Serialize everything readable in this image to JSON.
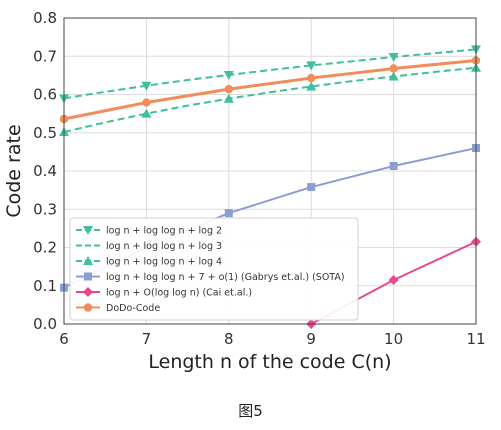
{
  "figure_caption": "图5",
  "chart_data": {
    "type": "line",
    "title": "",
    "xlabel": "Length n of the code C(n)",
    "ylabel": "Code rate",
    "xlim": [
      6,
      11
    ],
    "ylim": [
      0,
      0.8
    ],
    "xticks": [
      "6",
      "7",
      "8",
      "9",
      "10",
      "11"
    ],
    "yticks": [
      "0.0",
      "0.1",
      "0.2",
      "0.3",
      "0.4",
      "0.5",
      "0.6",
      "0.7",
      "0.8"
    ],
    "grid": true,
    "legend_position": "lower-left",
    "series": [
      {
        "name": "log n + log log n + log 2",
        "color": "#3fbf9f",
        "dash": "dashed",
        "marker": "triangle-down",
        "marker_every_integer": true,
        "x": [
          6,
          6.5,
          7,
          7.5,
          8,
          8.5,
          9,
          9.5,
          10,
          10.5,
          11
        ],
        "y": [
          0.59,
          0.607,
          0.623,
          0.638,
          0.651,
          0.664,
          0.676,
          0.687,
          0.698,
          0.708,
          0.718
        ]
      },
      {
        "name": "log n + log log n + log 3",
        "color": "#3fbf9f",
        "dash": "dashed",
        "marker": "none",
        "marker_every_integer": false,
        "x": [
          6,
          6.5,
          7,
          7.5,
          8,
          8.5,
          9,
          9.5,
          10,
          10.5,
          11
        ],
        "y": [
          0.536,
          0.558,
          0.579,
          0.598,
          0.614,
          0.629,
          0.643,
          0.656,
          0.668,
          0.679,
          0.689
        ]
      },
      {
        "name": "log n + log log n + log 4",
        "color": "#3fbf9f",
        "dash": "dashed",
        "marker": "triangle-up",
        "marker_every_integer": true,
        "x": [
          6,
          6.5,
          7,
          7.5,
          8,
          8.5,
          9,
          9.5,
          10,
          10.5,
          11
        ],
        "y": [
          0.502,
          0.527,
          0.55,
          0.571,
          0.589,
          0.606,
          0.621,
          0.635,
          0.647,
          0.659,
          0.67
        ]
      },
      {
        "name": "log n + log log n + 7 + o(1) (Gabrys et.al.) (SOTA)",
        "color": "#8b9ed0",
        "dash": "solid",
        "marker": "square",
        "marker_every_integer": true,
        "x": [
          6,
          7,
          8,
          9,
          10,
          11
        ],
        "y": [
          0.095,
          0.2,
          0.29,
          0.358,
          0.413,
          0.46
        ]
      },
      {
        "name": "log n + O(log log n) (Cai et.al.)",
        "color": "#e8488f",
        "dash": "solid",
        "marker": "diamond",
        "marker_every_integer": true,
        "x": [
          9,
          10,
          11
        ],
        "y": [
          0.0,
          0.115,
          0.215
        ]
      },
      {
        "name": "DoDo-Code",
        "color": "#f28c5a",
        "dash": "solid",
        "marker": "circle",
        "marker_every_integer": true,
        "x": [
          6,
          7,
          8,
          9,
          10,
          11
        ],
        "y": [
          0.536,
          0.579,
          0.614,
          0.643,
          0.668,
          0.689
        ]
      }
    ],
    "legend_labels": [
      "log n + log log n + log 2",
      "log n + log log n + log 3",
      "log n + log log n + log 4",
      "log n + log log n + 7 + o(1) (Gabrys et.al.) (SOTA)",
      "log n + O(log log n) (Cai et.al.)",
      "DoDo-Code"
    ]
  }
}
